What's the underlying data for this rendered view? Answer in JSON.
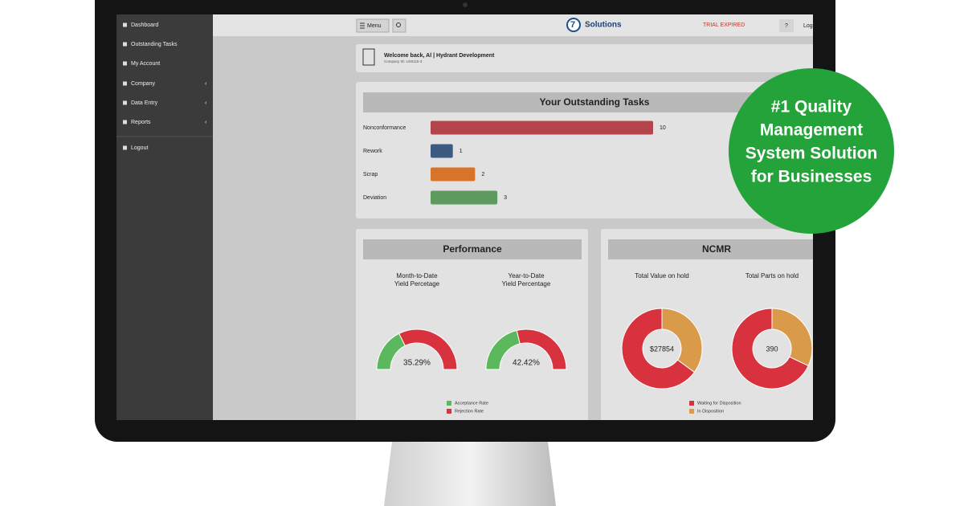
{
  "sidebar": {
    "items": [
      "Dashboard",
      "Outstanding Tasks",
      "My Account",
      "Company",
      "Data Entry",
      "Reports",
      "Logout"
    ]
  },
  "topbar": {
    "menu": "Menu",
    "brand": "Solutions",
    "status": "TRIAL EXPIRED",
    "help": "?",
    "login": "Log"
  },
  "welcome": {
    "title": "Welcome back, Al | Hydrant Development",
    "company_id": "Company ID: US0116-3"
  },
  "badge": {
    "lines": [
      "#1 Quality",
      "Management",
      "System Solution",
      "for Businesses"
    ]
  },
  "tasks_chart": {
    "type": "bar",
    "title": "Your Outstanding Tasks",
    "categories": [
      "Nonconformance",
      "Rework",
      "Scrap",
      "Deviation"
    ],
    "values": [
      10,
      1,
      2,
      3
    ],
    "colors": [
      "#b5454c",
      "#3c5a82",
      "#d8732a",
      "#5e9a5e"
    ]
  },
  "performance": {
    "title": "Performance",
    "legend": [
      {
        "name": "Acceptance Rate",
        "color": "#5cb85c"
      },
      {
        "name": "Rejection Rate",
        "color": "#d9323f"
      }
    ],
    "charts": [
      {
        "type": "gauge",
        "title": [
          "Month-to-Date",
          "Yield Percetage"
        ],
        "values": [
          35.29,
          64.71
        ],
        "value_labels": [
          "35.29%",
          null
        ]
      },
      {
        "type": "gauge",
        "title": [
          "Year-to-Date",
          "Yield Percentage"
        ],
        "values": [
          42.42,
          57.58
        ],
        "value_labels": [
          "42.42%",
          null
        ]
      }
    ]
  },
  "ncmr": {
    "title": "NCMR",
    "legend": [
      {
        "name": "Waiting for Disposition",
        "color": "#d9323f"
      },
      {
        "name": "In Disposition",
        "color": "#d99a4a"
      }
    ],
    "charts": [
      {
        "type": "donut",
        "title": "Total Value on hold",
        "values": [
          18100,
          9754
        ],
        "total": 27854,
        "total_label": "$27854"
      },
      {
        "type": "donut",
        "title": "Total Parts on hold",
        "values": [
          265,
          125
        ],
        "total": 390
      }
    ]
  }
}
